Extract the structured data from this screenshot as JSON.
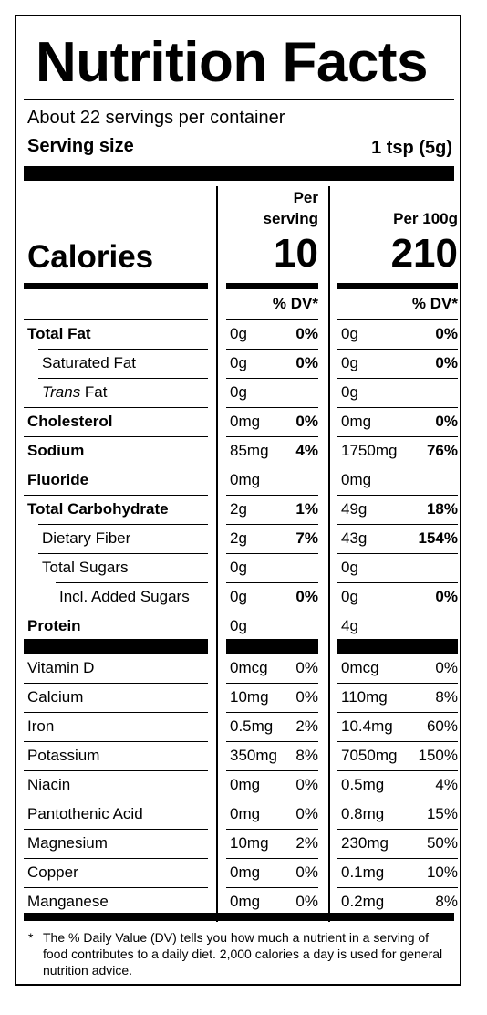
{
  "title": "Nutrition Facts",
  "servings_per_container": "About 22 servings per container",
  "serving_size": {
    "label": "Serving size",
    "value": "1 tsp (5g)"
  },
  "columns": [
    {
      "header_line1": "Per",
      "header_line2": "serving",
      "calories": "10",
      "dv_header": "% DV*"
    },
    {
      "header_line1": "",
      "header_line2": "Per 100g",
      "calories": "210",
      "dv_header": "% DV*"
    }
  ],
  "calories_label": "Calories",
  "nutrients": [
    {
      "label": "Total Fat",
      "bold": true,
      "indent": 0,
      "serving": {
        "amount": "0g",
        "dv": "0%"
      },
      "per100": {
        "amount": "0g",
        "dv": "0%"
      }
    },
    {
      "label": "Saturated Fat",
      "bold": false,
      "indent": 1,
      "serving": {
        "amount": "0g",
        "dv": "0%"
      },
      "per100": {
        "amount": "0g",
        "dv": "0%"
      }
    },
    {
      "label": "Trans",
      "label_suffix": " Fat",
      "italic_prefix": true,
      "bold": false,
      "indent": 1,
      "serving": {
        "amount": "0g",
        "dv": ""
      },
      "per100": {
        "amount": "0g",
        "dv": ""
      }
    },
    {
      "label": "Cholesterol",
      "bold": true,
      "indent": 0,
      "serving": {
        "amount": "0mg",
        "dv": "0%"
      },
      "per100": {
        "amount": "0mg",
        "dv": "0%"
      }
    },
    {
      "label": "Sodium",
      "bold": true,
      "indent": 0,
      "serving": {
        "amount": "85mg",
        "dv": "4%"
      },
      "per100": {
        "amount": "1750mg",
        "dv": "76%"
      }
    },
    {
      "label": "Fluoride",
      "bold": true,
      "indent": 0,
      "serving": {
        "amount": "0mg",
        "dv": ""
      },
      "per100": {
        "amount": "0mg",
        "dv": ""
      }
    },
    {
      "label": "Total Carbohydrate",
      "bold": true,
      "indent": 0,
      "serving": {
        "amount": "2g",
        "dv": "1%"
      },
      "per100": {
        "amount": "49g",
        "dv": "18%"
      }
    },
    {
      "label": "Dietary Fiber",
      "bold": false,
      "indent": 1,
      "serving": {
        "amount": "2g",
        "dv": "7%"
      },
      "per100": {
        "amount": "43g",
        "dv": "154%"
      }
    },
    {
      "label": "Total Sugars",
      "bold": false,
      "indent": 1,
      "serving": {
        "amount": "0g",
        "dv": ""
      },
      "per100": {
        "amount": "0g",
        "dv": ""
      }
    },
    {
      "label": "Incl. Added Sugars",
      "bold": false,
      "indent": 2,
      "serving": {
        "amount": "0g",
        "dv": "0%"
      },
      "per100": {
        "amount": "0g",
        "dv": "0%"
      }
    },
    {
      "label": "Protein",
      "bold": true,
      "indent": 0,
      "serving": {
        "amount": "0g",
        "dv": ""
      },
      "per100": {
        "amount": "4g",
        "dv": ""
      }
    }
  ],
  "vitamins": [
    {
      "label": "Vitamin D",
      "serving": {
        "amount": "0mcg",
        "dv": "0%"
      },
      "per100": {
        "amount": "0mcg",
        "dv": "0%"
      }
    },
    {
      "label": "Calcium",
      "serving": {
        "amount": "10mg",
        "dv": "0%"
      },
      "per100": {
        "amount": "110mg",
        "dv": "8%"
      }
    },
    {
      "label": "Iron",
      "serving": {
        "amount": "0.5mg",
        "dv": "2%"
      },
      "per100": {
        "amount": "10.4mg",
        "dv": "60%"
      }
    },
    {
      "label": "Potassium",
      "serving": {
        "amount": "350mg",
        "dv": "8%"
      },
      "per100": {
        "amount": "7050mg",
        "dv": "150%"
      }
    },
    {
      "label": "Niacin",
      "serving": {
        "amount": "0mg",
        "dv": "0%"
      },
      "per100": {
        "amount": "0.5mg",
        "dv": "4%"
      }
    },
    {
      "label": "Pantothenic Acid",
      "serving": {
        "amount": "0mg",
        "dv": "0%"
      },
      "per100": {
        "amount": "0.8mg",
        "dv": "15%"
      }
    },
    {
      "label": "Magnesium",
      "serving": {
        "amount": "10mg",
        "dv": "2%"
      },
      "per100": {
        "amount": "230mg",
        "dv": "50%"
      }
    },
    {
      "label": "Copper",
      "serving": {
        "amount": "0mg",
        "dv": "0%"
      },
      "per100": {
        "amount": "0.1mg",
        "dv": "10%"
      }
    },
    {
      "label": "Manganese",
      "serving": {
        "amount": "0mg",
        "dv": "0%"
      },
      "per100": {
        "amount": "0.2mg",
        "dv": "8%"
      }
    }
  ],
  "footnote": {
    "star": "*",
    "text": "The % Daily Value (DV) tells you how much a nutrient in a serving of food contributes to a daily diet. 2,000 calories a day is used for general nutrition advice."
  }
}
